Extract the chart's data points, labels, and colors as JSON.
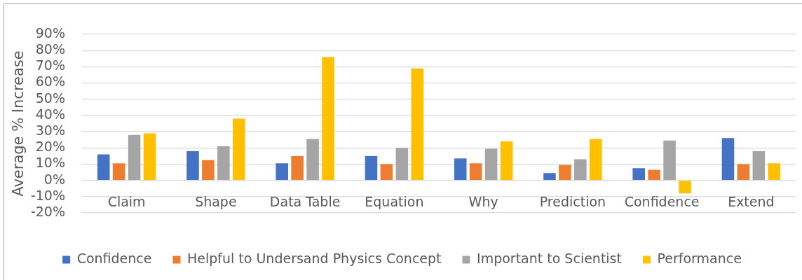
{
  "chart_data": {
    "type": "bar",
    "ylabel": "Average % Increase",
    "categories": [
      "Claim",
      "Shape",
      "Data Table",
      "Equation",
      "Why",
      "Prediction",
      "Confidence",
      "Extend"
    ],
    "series": [
      {
        "name": "Confidence",
        "color": "#4472c4",
        "values": [
          16,
          18,
          10.5,
          15,
          13.5,
          4.5,
          7.5,
          26
        ]
      },
      {
        "name": "Helpful to Undersand Physics Concept",
        "color": "#ed7d31",
        "values": [
          10.5,
          12.5,
          15,
          10,
          10.5,
          9.5,
          6.5,
          10
        ]
      },
      {
        "name": "Important to Scientist",
        "color": "#a5a5a5",
        "values": [
          28,
          21,
          25.5,
          20,
          19.5,
          13,
          24.5,
          18
        ]
      },
      {
        "name": "Performance",
        "color": "#ffc000",
        "values": [
          29,
          38,
          76,
          69,
          24,
          25.5,
          -8,
          10.5
        ]
      }
    ],
    "ylim": [
      -20,
      90
    ],
    "yticks": [
      {
        "value": -20,
        "label": "-20%"
      },
      {
        "value": -10,
        "label": "-10%"
      },
      {
        "value": 0,
        "label": "0%"
      },
      {
        "value": 10,
        "label": "10%"
      },
      {
        "value": 20,
        "label": "20%"
      },
      {
        "value": 30,
        "label": "30%"
      },
      {
        "value": 40,
        "label": "40%"
      },
      {
        "value": 50,
        "label": "50%"
      },
      {
        "value": 60,
        "label": "60%"
      },
      {
        "value": 70,
        "label": "70%"
      },
      {
        "value": 80,
        "label": "80%"
      },
      {
        "value": 90,
        "label": "90%"
      }
    ],
    "grid": "y",
    "legend": "bottom"
  }
}
